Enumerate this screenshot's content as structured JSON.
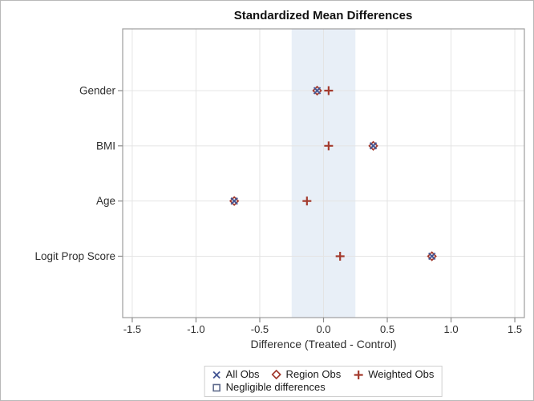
{
  "window": {
    "background": "#ffffff",
    "frame_border_color": "#b8b8b8"
  },
  "chart_data": {
    "type": "scatter",
    "title": "Standardized Mean Differences",
    "xlabel": "Difference (Treated - Control)",
    "categories": [
      "Gender",
      "BMI",
      "Age",
      "Logit Prop Score"
    ],
    "xticks": [
      -1.5,
      -1.0,
      -0.5,
      0.0,
      0.5,
      1.0,
      1.5
    ],
    "xtick_labels": [
      "-1.5",
      "-1.0",
      "-0.5",
      "0.0",
      "0.5",
      "1.0",
      "1.5"
    ],
    "xlim": [
      -1.575,
      1.575
    ],
    "grid": true,
    "legend_position": "bottom",
    "series": [
      {
        "name": "All Obs",
        "marker": "x",
        "color": "#445694",
        "values": [
          -0.05,
          0.39,
          -0.7,
          0.85
        ]
      },
      {
        "name": "Region Obs",
        "marker": "diamond",
        "color": "#A23A2E",
        "values": [
          -0.05,
          0.39,
          -0.7,
          0.85
        ]
      },
      {
        "name": "Weighted Obs",
        "marker": "plus",
        "color": "#A43B2E",
        "values": [
          0.04,
          0.04,
          -0.13,
          0.13
        ]
      }
    ],
    "reference_band": {
      "from": -0.25,
      "to": 0.25,
      "label": "Negligible differences",
      "fill": "#E8EFF7",
      "legend_marker": "square",
      "legend_color": "#5F6B8C"
    },
    "style": {
      "gridline_color": "#e4e4e4",
      "frame_color": "#9e9e9e",
      "tick_color": "#8c8c8c",
      "text_color": "#2f2f2f"
    }
  }
}
